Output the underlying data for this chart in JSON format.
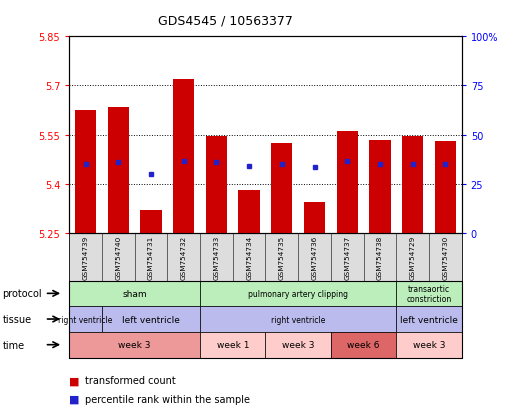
{
  "title": "GDS4545 / 10563377",
  "samples": [
    "GSM754739",
    "GSM754740",
    "GSM754731",
    "GSM754732",
    "GSM754733",
    "GSM754734",
    "GSM754735",
    "GSM754736",
    "GSM754737",
    "GSM754738",
    "GSM754729",
    "GSM754730"
  ],
  "bar_bottoms": [
    5.25,
    5.25,
    5.25,
    5.25,
    5.25,
    5.25,
    5.25,
    5.25,
    5.25,
    5.25,
    5.25,
    5.25
  ],
  "bar_tops": [
    5.625,
    5.635,
    5.32,
    5.72,
    5.545,
    5.38,
    5.525,
    5.345,
    5.56,
    5.535,
    5.545,
    5.53
  ],
  "percentile_values": [
    5.46,
    5.465,
    5.43,
    5.47,
    5.465,
    5.455,
    5.46,
    5.45,
    5.47,
    5.46,
    5.46,
    5.46
  ],
  "ylim": [
    5.25,
    5.85
  ],
  "yticks_left": [
    5.25,
    5.4,
    5.55,
    5.7,
    5.85
  ],
  "yticks_right_vals": [
    0,
    25,
    50,
    75,
    100
  ],
  "bar_color": "#cc0000",
  "percentile_color": "#2222cc",
  "protocol_row": {
    "groups": [
      {
        "label": "sham",
        "start": 0,
        "end": 4,
        "color": "#bbeebb"
      },
      {
        "label": "pulmonary artery clipping",
        "start": 4,
        "end": 10,
        "color": "#bbeebb"
      },
      {
        "label": "transaortic\nconstriction",
        "start": 10,
        "end": 12,
        "color": "#bbeebb"
      }
    ]
  },
  "tissue_row": {
    "groups": [
      {
        "label": "right ventricle",
        "start": 0,
        "end": 1,
        "color": "#bbbbee"
      },
      {
        "label": "left ventricle",
        "start": 1,
        "end": 4,
        "color": "#bbbbee"
      },
      {
        "label": "right ventricle",
        "start": 4,
        "end": 10,
        "color": "#bbbbee"
      },
      {
        "label": "left ventricle",
        "start": 10,
        "end": 12,
        "color": "#bbbbee"
      }
    ]
  },
  "time_row": {
    "groups": [
      {
        "label": "week 3",
        "start": 0,
        "end": 4,
        "color": "#ee9999"
      },
      {
        "label": "week 1",
        "start": 4,
        "end": 6,
        "color": "#ffcccc"
      },
      {
        "label": "week 3",
        "start": 6,
        "end": 8,
        "color": "#ffcccc"
      },
      {
        "label": "week 6",
        "start": 8,
        "end": 10,
        "color": "#dd6666"
      },
      {
        "label": "week 3",
        "start": 10,
        "end": 12,
        "color": "#ffcccc"
      }
    ]
  },
  "row_labels": [
    "protocol",
    "tissue",
    "time"
  ],
  "legend_items": [
    {
      "label": "transformed count",
      "color": "#cc0000"
    },
    {
      "label": "percentile rank within the sample",
      "color": "#2222cc"
    }
  ]
}
